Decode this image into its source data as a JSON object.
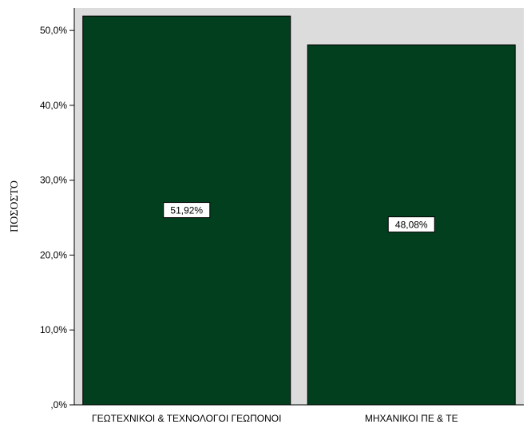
{
  "chart_data": {
    "type": "bar",
    "title": "",
    "xlabel": "",
    "ylabel": "ΠΟΣΟΣΤΟ",
    "ylim": [
      0,
      53
    ],
    "yticks": [
      0,
      10,
      20,
      30,
      40,
      50
    ],
    "ytick_labels": [
      ",0%",
      "10,0%",
      "20,0%",
      "30,0%",
      "40,0%",
      "50,0%"
    ],
    "categories": [
      "ΓΕΩΤΕΧΝΙΚΟΙ & ΤΕΧΝΟΛΟΓΟΙ ΓΕΩΠΟΝΟΙ",
      "ΜΗΧΑΝΙΚΟΙ ΠΕ & ΤΕ"
    ],
    "values": [
      51.92,
      48.08
    ],
    "data_labels": [
      "51,92%",
      "48,08%"
    ],
    "colors": {
      "bar": "#023f1f",
      "plot_background": "#dcdcdc",
      "axis": "#000000"
    },
    "grid": false,
    "legend": "none"
  }
}
